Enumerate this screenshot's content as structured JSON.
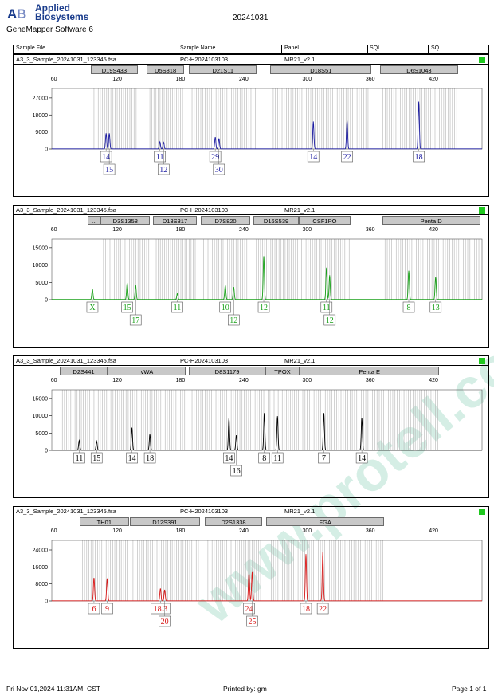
{
  "header": {
    "logo_line1": "Applied",
    "logo_line2": "Biosystems",
    "software": "GeneMapper Software 6",
    "run_date": "20241031"
  },
  "table_header": {
    "sample_file": "Sample File",
    "sample_name": "Sample Name",
    "panel": "Panel",
    "sqi": "SQI",
    "sq": "SQ"
  },
  "footer": {
    "left": "Fri Nov 01,2024 11:31AM, CST",
    "mid": "Printed by: gm",
    "right": "Page 1 of 1"
  },
  "colors": {
    "blue": "#1a1aa0",
    "green": "#18a018",
    "black": "#000000",
    "red": "#d81818",
    "bin": "#b4b4b4",
    "quality_ok": "#1ec81e",
    "watermark": "#d5eee5"
  },
  "watermark_text": "www.protell.com.cn",
  "chart_data": [
    {
      "type": "line",
      "dye": "blue",
      "sample_file": "A3_3_Sample_20241031_123345.fsa",
      "sample_name": "PC-H2024103103",
      "panel": "MR21_v2.1",
      "x_ticks": [
        60,
        120,
        180,
        240,
        300,
        360,
        420
      ],
      "xlim": [
        58,
        466
      ],
      "y_ticks": [
        0,
        9000,
        18000,
        27000
      ],
      "ylim": [
        0,
        32000
      ],
      "markers": [
        {
          "name": "D19S433",
          "start": 96,
          "end": 140
        },
        {
          "name": "D5S818",
          "start": 149,
          "end": 184
        },
        {
          "name": "D21S11",
          "start": 189,
          "end": 253
        },
        {
          "name": "D18S51",
          "start": 266,
          "end": 362
        },
        {
          "name": "D6S1043",
          "start": 370,
          "end": 444
        }
      ],
      "peaks": [
        {
          "x": 109.5,
          "h": 8200
        },
        {
          "x": 112.5,
          "h": 8200
        },
        {
          "x": 160.5,
          "h": 3800
        },
        {
          "x": 164.0,
          "h": 3500
        },
        {
          "x": 213.0,
          "h": 6200
        },
        {
          "x": 216.5,
          "h": 5500
        },
        {
          "x": 306.0,
          "h": 14500
        },
        {
          "x": 338.0,
          "h": 15000
        },
        {
          "x": 406.0,
          "h": 25000
        }
      ],
      "alleles": [
        {
          "x": 109.5,
          "row": 1,
          "label": "14"
        },
        {
          "x": 112.5,
          "row": 2,
          "label": "15"
        },
        {
          "x": 160.5,
          "row": 1,
          "label": "11"
        },
        {
          "x": 164.0,
          "row": 2,
          "label": "12"
        },
        {
          "x": 213.0,
          "row": 1,
          "label": "29"
        },
        {
          "x": 216.5,
          "row": 2,
          "label": "30"
        },
        {
          "x": 306.0,
          "row": 1,
          "label": "14"
        },
        {
          "x": 338.0,
          "row": 1,
          "label": "22"
        },
        {
          "x": 406.0,
          "row": 1,
          "label": "18"
        }
      ]
    },
    {
      "type": "line",
      "dye": "green",
      "sample_file": "A3_3_Sample_20241031_123345.fsa",
      "sample_name": "PC-H2024103103",
      "panel": "MR21_v2.1",
      "x_ticks": [
        60,
        120,
        180,
        240,
        300,
        360,
        420
      ],
      "xlim": [
        58,
        466
      ],
      "y_ticks": [
        0,
        5000,
        10000,
        15000
      ],
      "ylim": [
        0,
        17500
      ],
      "markers": [
        {
          "name": "...",
          "start": 93,
          "end": 105
        },
        {
          "name": "D3S1358",
          "start": 105,
          "end": 152
        },
        {
          "name": "D13S317",
          "start": 155,
          "end": 196
        },
        {
          "name": "D7S820",
          "start": 200,
          "end": 247
        },
        {
          "name": "D16S539",
          "start": 250,
          "end": 293
        },
        {
          "name": "CSF1PO",
          "start": 293,
          "end": 342
        },
        {
          "name": "Penta D",
          "start": 372,
          "end": 465
        }
      ],
      "peaks": [
        {
          "x": 96.5,
          "h": 3000
        },
        {
          "x": 129.5,
          "h": 4800
        },
        {
          "x": 137.5,
          "h": 4200
        },
        {
          "x": 177.0,
          "h": 1700
        },
        {
          "x": 222.5,
          "h": 4100
        },
        {
          "x": 230.5,
          "h": 3600
        },
        {
          "x": 259.0,
          "h": 12500
        },
        {
          "x": 318.5,
          "h": 9200
        },
        {
          "x": 321.5,
          "h": 7000
        },
        {
          "x": 396.5,
          "h": 8300
        },
        {
          "x": 422.0,
          "h": 6500
        }
      ],
      "alleles": [
        {
          "x": 96.5,
          "row": 1,
          "label": "X"
        },
        {
          "x": 129.5,
          "row": 1,
          "label": "15"
        },
        {
          "x": 137.5,
          "row": 2,
          "label": "17"
        },
        {
          "x": 177.0,
          "row": 1,
          "label": "11"
        },
        {
          "x": 222.5,
          "row": 1,
          "label": "10"
        },
        {
          "x": 230.5,
          "row": 2,
          "label": "12"
        },
        {
          "x": 259.0,
          "row": 1,
          "label": "12"
        },
        {
          "x": 318.5,
          "row": 1,
          "label": "11"
        },
        {
          "x": 321.5,
          "row": 2,
          "label": "12"
        },
        {
          "x": 396.5,
          "row": 1,
          "label": "8"
        },
        {
          "x": 422.0,
          "row": 1,
          "label": "13"
        }
      ]
    },
    {
      "type": "line",
      "dye": "black",
      "sample_file": "A3_3_Sample_20241031_123345.fsa",
      "sample_name": "PC-H2024103103",
      "panel": "MR21_v2.1",
      "x_ticks": [
        60,
        120,
        180,
        240,
        300,
        360,
        420
      ],
      "xlim": [
        58,
        466
      ],
      "y_ticks": [
        0,
        5000,
        10000,
        15000
      ],
      "ylim": [
        0,
        17500
      ],
      "markers": [
        {
          "name": "D2S441",
          "start": 66,
          "end": 112
        },
        {
          "name": "vWA",
          "start": 112,
          "end": 186
        },
        {
          "name": "D8S1179",
          "start": 189,
          "end": 261
        },
        {
          "name": "TPOX",
          "start": 261,
          "end": 294
        },
        {
          "name": "Penta E",
          "start": 294,
          "end": 426
        }
      ],
      "peaks": [
        {
          "x": 84.0,
          "h": 2800
        },
        {
          "x": 100.5,
          "h": 2600
        },
        {
          "x": 134.0,
          "h": 6500
        },
        {
          "x": 151.0,
          "h": 4600
        },
        {
          "x": 226.0,
          "h": 9300
        },
        {
          "x": 233.0,
          "h": 4300
        },
        {
          "x": 259.5,
          "h": 10700
        },
        {
          "x": 272.0,
          "h": 9800
        },
        {
          "x": 316.0,
          "h": 10700
        },
        {
          "x": 352.0,
          "h": 9300
        }
      ],
      "alleles": [
        {
          "x": 84.0,
          "row": 1,
          "label": "11"
        },
        {
          "x": 100.5,
          "row": 1,
          "label": "15"
        },
        {
          "x": 134.0,
          "row": 1,
          "label": "14"
        },
        {
          "x": 151.0,
          "row": 1,
          "label": "18"
        },
        {
          "x": 226.0,
          "row": 1,
          "label": "14"
        },
        {
          "x": 233.0,
          "row": 2,
          "label": "16"
        },
        {
          "x": 259.5,
          "row": 1,
          "label": "8"
        },
        {
          "x": 272.0,
          "row": 1,
          "label": "11"
        },
        {
          "x": 316.0,
          "row": 1,
          "label": "7"
        },
        {
          "x": 352.0,
          "row": 1,
          "label": "14"
        }
      ]
    },
    {
      "type": "line",
      "dye": "red",
      "sample_file": "A3_3_Sample_20241031_123345.fsa",
      "sample_name": "PC-H2024103103",
      "panel": "MR21_v2.1",
      "x_ticks": [
        60,
        120,
        180,
        240,
        300,
        360,
        420
      ],
      "xlim": [
        58,
        466
      ],
      "y_ticks": [
        0,
        8000,
        16000,
        24000
      ],
      "ylim": [
        0,
        28500
      ],
      "markers": [
        {
          "name": "TH01",
          "start": 85,
          "end": 132
        },
        {
          "name": "D12S391",
          "start": 133,
          "end": 199
        },
        {
          "name": "D2S1338",
          "start": 204,
          "end": 258
        },
        {
          "name": "FGA",
          "start": 262,
          "end": 374
        }
      ],
      "peaks": [
        {
          "x": 98.0,
          "h": 10800
        },
        {
          "x": 110.5,
          "h": 10500
        },
        {
          "x": 161.0,
          "h": 5800
        },
        {
          "x": 165.0,
          "h": 5200
        },
        {
          "x": 245.0,
          "h": 13000
        },
        {
          "x": 248.0,
          "h": 13500
        },
        {
          "x": 299.0,
          "h": 22000
        },
        {
          "x": 315.0,
          "h": 23000
        }
      ],
      "alleles": [
        {
          "x": 98.0,
          "row": 1,
          "label": "6"
        },
        {
          "x": 110.5,
          "row": 1,
          "label": "9"
        },
        {
          "x": 161.0,
          "row": 1,
          "label": "18.3"
        },
        {
          "x": 165.0,
          "row": 2,
          "label": "20"
        },
        {
          "x": 245.0,
          "row": 1,
          "label": "24"
        },
        {
          "x": 248.0,
          "row": 2,
          "label": "25"
        },
        {
          "x": 299.0,
          "row": 1,
          "label": "18"
        },
        {
          "x": 315.0,
          "row": 1,
          "label": "22"
        }
      ]
    }
  ]
}
